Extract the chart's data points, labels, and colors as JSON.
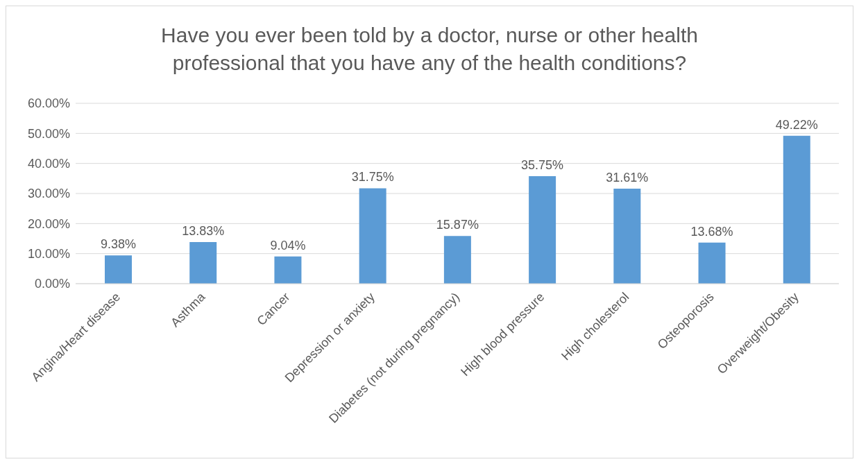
{
  "chart_data": {
    "type": "bar",
    "title": "Have you ever been told by a doctor, nurse or other health professional that you have any of the health conditions?",
    "categories": [
      "Angina/Heart disease",
      "Asthma",
      "Cancer",
      "Depression or anxiety",
      "Diabetes (not during pregnancy)",
      "High blood pressure",
      "High cholesterol",
      "Osteoporosis",
      "Overweight/Obesity"
    ],
    "values": [
      9.38,
      13.83,
      9.04,
      31.75,
      15.87,
      35.75,
      31.61,
      13.68,
      49.22
    ],
    "value_labels": [
      "9.38%",
      "13.83%",
      "9.04%",
      "31.75%",
      "15.87%",
      "35.75%",
      "31.61%",
      "13.68%",
      "49.22%"
    ],
    "color": "#5b9bd5",
    "ylim": [
      0,
      60
    ],
    "yticks": [
      {
        "value": 0,
        "label": "0.00%"
      },
      {
        "value": 10,
        "label": "10.00%"
      },
      {
        "value": 20,
        "label": "20.00%"
      },
      {
        "value": 30,
        "label": "30.00%"
      },
      {
        "value": 40,
        "label": "40.00%"
      },
      {
        "value": 50,
        "label": "50.00%"
      },
      {
        "value": 60,
        "label": "60.00%"
      }
    ],
    "grid": "y",
    "legend": false
  }
}
